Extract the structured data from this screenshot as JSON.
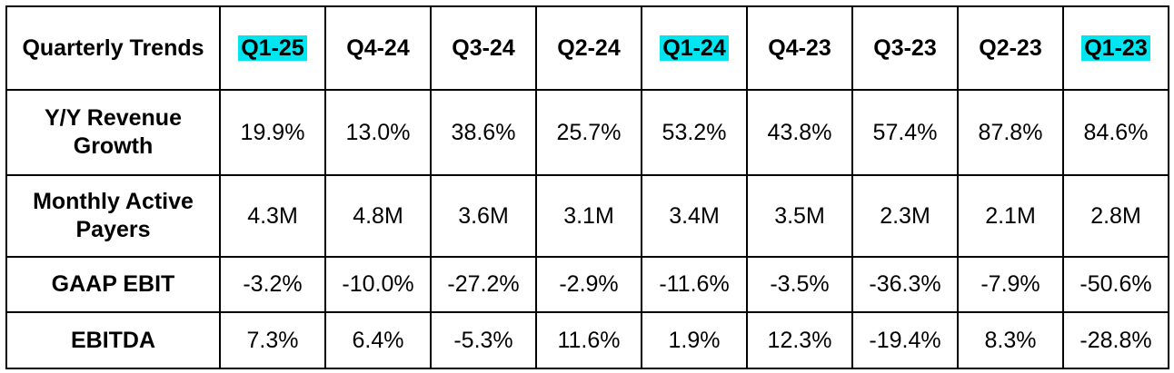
{
  "table": {
    "corner_label": "Quarterly Trends",
    "headers": [
      {
        "label": "Q1-25",
        "highlight": true
      },
      {
        "label": "Q4-24",
        "highlight": false
      },
      {
        "label": "Q3-24",
        "highlight": false
      },
      {
        "label": "Q2-24",
        "highlight": false
      },
      {
        "label": "Q1-24",
        "highlight": true
      },
      {
        "label": "Q4-23",
        "highlight": false
      },
      {
        "label": "Q3-23",
        "highlight": false
      },
      {
        "label": "Q2-23",
        "highlight": false
      },
      {
        "label": "Q1-23",
        "highlight": true
      }
    ],
    "highlight_color": "#00e5ef",
    "rows": [
      {
        "label": "Y/Y Revenue Growth",
        "values": [
          "19.9%",
          "13.0%",
          "38.6%",
          "25.7%",
          "53.2%",
          "43.8%",
          "57.4%",
          "87.8%",
          "84.6%"
        ]
      },
      {
        "label": "Monthly Active Payers",
        "values": [
          "4.3M",
          "4.8M",
          "3.6M",
          "3.1M",
          "3.4M",
          "3.5M",
          "2.3M",
          "2.1M",
          "2.8M"
        ]
      },
      {
        "label": "GAAP EBIT",
        "values": [
          "-3.2%",
          "-10.0%",
          "-27.2%",
          "-2.9%",
          "-11.6%",
          "-3.5%",
          "-36.3%",
          "-7.9%",
          "-50.6%"
        ]
      },
      {
        "label": "EBITDA",
        "values": [
          "7.3%",
          "6.4%",
          "-5.3%",
          "11.6%",
          "1.9%",
          "12.3%",
          "-19.4%",
          "8.3%",
          "-28.8%"
        ]
      }
    ]
  }
}
